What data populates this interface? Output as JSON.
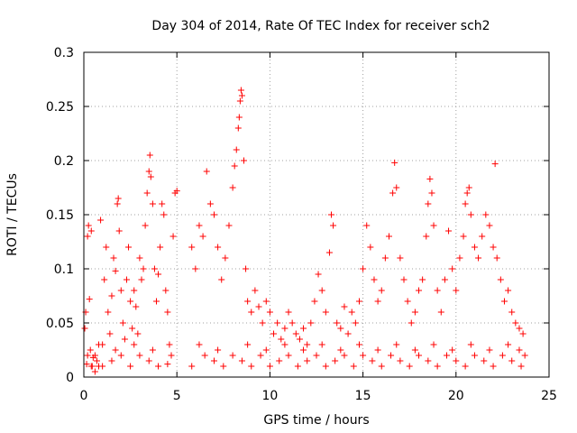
{
  "chart_data": {
    "type": "scatter",
    "title": "Day 304 of 2014, Rate Of TEC Index for receiver sch2",
    "xlabel": "GPS time / hours",
    "ylabel": "ROTI / TECUs",
    "xlim": [
      0,
      25
    ],
    "ylim": [
      0,
      0.3
    ],
    "xticks": [
      0,
      5,
      10,
      15,
      20,
      25
    ],
    "xtick_labels": [
      "0",
      "5",
      "10",
      "15",
      "20",
      "25"
    ],
    "yticks": [
      0,
      0.05,
      0.1,
      0.15,
      0.2,
      0.25,
      0.3
    ],
    "ytick_labels": [
      "0",
      "0.05",
      "0.1",
      "0.15",
      "0.2",
      "0.25",
      "0.3"
    ],
    "grid": true,
    "marker": "+",
    "marker_color": "#ff0000",
    "series": [
      {
        "points": [
          [
            0.05,
            0.045
          ],
          [
            0.1,
            0.06
          ],
          [
            0.15,
            0.012
          ],
          [
            0.2,
            0.13
          ],
          [
            0.25,
            0.14
          ],
          [
            0.3,
            0.072
          ],
          [
            0.35,
            0.025
          ],
          [
            0.4,
            0.135
          ],
          [
            0.45,
            0.01
          ],
          [
            0.5,
            0.018
          ],
          [
            0.6,
            0.02
          ],
          [
            0.7,
            0.015
          ],
          [
            0.8,
            0.01
          ],
          [
            0.9,
            0.145
          ],
          [
            1.0,
            0.03
          ],
          [
            1.1,
            0.09
          ],
          [
            1.2,
            0.12
          ],
          [
            1.3,
            0.06
          ],
          [
            1.4,
            0.04
          ],
          [
            1.5,
            0.075
          ],
          [
            1.6,
            0.11
          ],
          [
            1.7,
            0.098
          ],
          [
            1.8,
            0.16
          ],
          [
            1.85,
            0.165
          ],
          [
            1.9,
            0.135
          ],
          [
            2.0,
            0.08
          ],
          [
            2.1,
            0.05
          ],
          [
            2.2,
            0.035
          ],
          [
            2.3,
            0.09
          ],
          [
            2.4,
            0.12
          ],
          [
            2.5,
            0.07
          ],
          [
            2.6,
            0.045
          ],
          [
            2.7,
            0.08
          ],
          [
            2.8,
            0.065
          ],
          [
            2.9,
            0.04
          ],
          [
            3.0,
            0.11
          ],
          [
            3.1,
            0.09
          ],
          [
            3.2,
            0.1
          ],
          [
            3.3,
            0.14
          ],
          [
            3.4,
            0.17
          ],
          [
            3.5,
            0.19
          ],
          [
            3.55,
            0.205
          ],
          [
            3.6,
            0.185
          ],
          [
            3.7,
            0.16
          ],
          [
            3.8,
            0.1
          ],
          [
            3.9,
            0.07
          ],
          [
            4.0,
            0.095
          ],
          [
            4.1,
            0.12
          ],
          [
            4.2,
            0.16
          ],
          [
            4.3,
            0.15
          ],
          [
            4.4,
            0.08
          ],
          [
            4.5,
            0.06
          ],
          [
            4.6,
            0.03
          ],
          [
            4.7,
            0.02
          ],
          [
            4.8,
            0.13
          ],
          [
            4.9,
            0.17
          ],
          [
            5.0,
            0.172
          ],
          [
            5.8,
            0.12
          ],
          [
            6.0,
            0.1
          ],
          [
            6.2,
            0.14
          ],
          [
            6.4,
            0.13
          ],
          [
            6.6,
            0.19
          ],
          [
            6.8,
            0.16
          ],
          [
            7.0,
            0.15
          ],
          [
            7.2,
            0.12
          ],
          [
            7.4,
            0.09
          ],
          [
            7.6,
            0.11
          ],
          [
            7.8,
            0.14
          ],
          [
            8.0,
            0.175
          ],
          [
            8.1,
            0.195
          ],
          [
            8.2,
            0.21
          ],
          [
            8.3,
            0.23
          ],
          [
            8.35,
            0.24
          ],
          [
            8.4,
            0.255
          ],
          [
            8.45,
            0.265
          ],
          [
            8.5,
            0.26
          ],
          [
            8.6,
            0.2
          ],
          [
            8.7,
            0.1
          ],
          [
            8.8,
            0.07
          ],
          [
            9.0,
            0.06
          ],
          [
            9.2,
            0.08
          ],
          [
            9.4,
            0.065
          ],
          [
            9.6,
            0.05
          ],
          [
            9.8,
            0.07
          ],
          [
            10.0,
            0.06
          ],
          [
            10.2,
            0.04
          ],
          [
            10.4,
            0.05
          ],
          [
            10.6,
            0.035
          ],
          [
            10.8,
            0.045
          ],
          [
            11.0,
            0.06
          ],
          [
            11.2,
            0.05
          ],
          [
            11.4,
            0.04
          ],
          [
            11.6,
            0.035
          ],
          [
            11.8,
            0.045
          ],
          [
            12.0,
            0.03
          ],
          [
            12.2,
            0.05
          ],
          [
            12.4,
            0.07
          ],
          [
            12.6,
            0.095
          ],
          [
            12.8,
            0.08
          ],
          [
            13.0,
            0.06
          ],
          [
            13.2,
            0.115
          ],
          [
            13.3,
            0.15
          ],
          [
            13.4,
            0.14
          ],
          [
            13.6,
            0.05
          ],
          [
            13.8,
            0.045
          ],
          [
            14.0,
            0.065
          ],
          [
            14.2,
            0.04
          ],
          [
            14.4,
            0.06
          ],
          [
            14.6,
            0.05
          ],
          [
            14.8,
            0.07
          ],
          [
            15.0,
            0.1
          ],
          [
            15.2,
            0.14
          ],
          [
            15.4,
            0.12
          ],
          [
            15.6,
            0.09
          ],
          [
            15.8,
            0.07
          ],
          [
            16.0,
            0.08
          ],
          [
            16.2,
            0.11
          ],
          [
            16.4,
            0.13
          ],
          [
            16.6,
            0.17
          ],
          [
            16.7,
            0.198
          ],
          [
            16.8,
            0.175
          ],
          [
            17.0,
            0.11
          ],
          [
            17.2,
            0.09
          ],
          [
            17.4,
            0.07
          ],
          [
            17.6,
            0.05
          ],
          [
            17.8,
            0.06
          ],
          [
            18.0,
            0.08
          ],
          [
            18.2,
            0.09
          ],
          [
            18.4,
            0.13
          ],
          [
            18.5,
            0.16
          ],
          [
            18.6,
            0.183
          ],
          [
            18.7,
            0.17
          ],
          [
            18.8,
            0.14
          ],
          [
            19.0,
            0.08
          ],
          [
            19.2,
            0.06
          ],
          [
            19.4,
            0.09
          ],
          [
            19.6,
            0.135
          ],
          [
            19.8,
            0.1
          ],
          [
            20.0,
            0.08
          ],
          [
            20.2,
            0.11
          ],
          [
            20.4,
            0.13
          ],
          [
            20.5,
            0.16
          ],
          [
            20.6,
            0.17
          ],
          [
            20.7,
            0.175
          ],
          [
            20.8,
            0.15
          ],
          [
            21.0,
            0.12
          ],
          [
            21.2,
            0.11
          ],
          [
            21.4,
            0.13
          ],
          [
            21.6,
            0.15
          ],
          [
            21.8,
            0.14
          ],
          [
            22.0,
            0.12
          ],
          [
            22.1,
            0.197
          ],
          [
            22.2,
            0.11
          ],
          [
            22.4,
            0.09
          ],
          [
            22.6,
            0.07
          ],
          [
            22.8,
            0.08
          ],
          [
            23.0,
            0.06
          ],
          [
            23.2,
            0.05
          ],
          [
            23.4,
            0.045
          ],
          [
            23.6,
            0.04
          ],
          [
            0.2,
            0.02
          ],
          [
            0.4,
            0.01
          ],
          [
            0.6,
            0.005
          ],
          [
            1.0,
            0.01
          ],
          [
            1.5,
            0.015
          ],
          [
            2.0,
            0.02
          ],
          [
            2.5,
            0.01
          ],
          [
            3.0,
            0.02
          ],
          [
            3.5,
            0.015
          ],
          [
            4.0,
            0.01
          ],
          [
            4.5,
            0.012
          ],
          [
            5.8,
            0.01
          ],
          [
            6.5,
            0.02
          ],
          [
            7.0,
            0.015
          ],
          [
            7.5,
            0.01
          ],
          [
            8.0,
            0.02
          ],
          [
            8.5,
            0.015
          ],
          [
            9.0,
            0.01
          ],
          [
            9.5,
            0.02
          ],
          [
            10.0,
            0.01
          ],
          [
            10.5,
            0.015
          ],
          [
            11.0,
            0.02
          ],
          [
            11.5,
            0.01
          ],
          [
            12.0,
            0.015
          ],
          [
            12.5,
            0.02
          ],
          [
            13.0,
            0.01
          ],
          [
            13.5,
            0.015
          ],
          [
            14.0,
            0.02
          ],
          [
            14.5,
            0.01
          ],
          [
            15.0,
            0.02
          ],
          [
            15.5,
            0.015
          ],
          [
            16.0,
            0.01
          ],
          [
            16.5,
            0.02
          ],
          [
            17.0,
            0.015
          ],
          [
            17.5,
            0.01
          ],
          [
            18.0,
            0.02
          ],
          [
            18.5,
            0.015
          ],
          [
            19.0,
            0.01
          ],
          [
            19.5,
            0.02
          ],
          [
            20.0,
            0.015
          ],
          [
            20.5,
            0.01
          ],
          [
            21.0,
            0.02
          ],
          [
            21.5,
            0.015
          ],
          [
            22.0,
            0.01
          ],
          [
            22.5,
            0.02
          ],
          [
            23.0,
            0.015
          ],
          [
            23.5,
            0.01
          ],
          [
            23.7,
            0.02
          ],
          [
            0.8,
            0.03
          ],
          [
            1.7,
            0.025
          ],
          [
            2.7,
            0.03
          ],
          [
            3.7,
            0.025
          ],
          [
            6.2,
            0.03
          ],
          [
            7.2,
            0.025
          ],
          [
            8.8,
            0.03
          ],
          [
            9.8,
            0.025
          ],
          [
            10.8,
            0.03
          ],
          [
            11.8,
            0.025
          ],
          [
            12.8,
            0.03
          ],
          [
            13.8,
            0.025
          ],
          [
            14.8,
            0.03
          ],
          [
            15.8,
            0.025
          ],
          [
            16.8,
            0.03
          ],
          [
            17.8,
            0.025
          ],
          [
            18.8,
            0.03
          ],
          [
            19.8,
            0.025
          ],
          [
            20.8,
            0.03
          ],
          [
            21.8,
            0.025
          ],
          [
            22.8,
            0.03
          ],
          [
            23.4,
            0.025
          ]
        ]
      }
    ]
  }
}
